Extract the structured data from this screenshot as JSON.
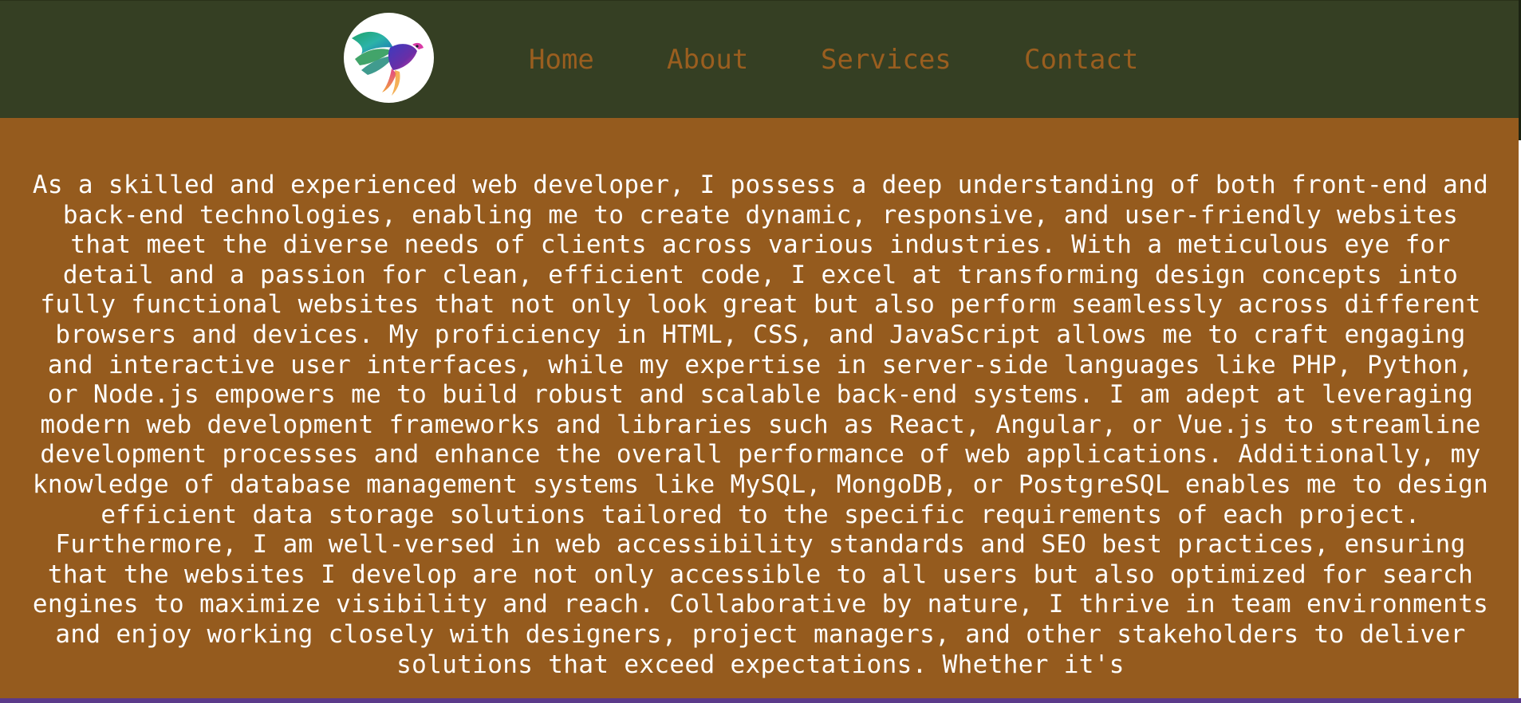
{
  "header": {
    "logo": {
      "icon": "bird-logo-icon",
      "colors": [
        "#1fa36b",
        "#2bb3a8",
        "#5a2ea6",
        "#d93aa6",
        "#f2a23a"
      ]
    },
    "nav": {
      "home_label": "Home",
      "about_label": "About",
      "services_label": "Services",
      "contact_label": "Contact"
    }
  },
  "main": {
    "about_paragraph": "As a skilled and experienced web developer, I possess a deep understanding of both front-end and back-end technologies, enabling me to create dynamic, responsive, and user-friendly websites that meet the diverse needs of clients across various industries. With a meticulous eye for detail and a passion for clean, efficient code, I excel at transforming design concepts into fully functional websites that not only look great but also perform seamlessly across different browsers and devices. My proficiency in HTML, CSS, and JavaScript allows me to craft engaging and interactive user interfaces, while my expertise in server-side languages like PHP, Python, or Node.js empowers me to build robust and scalable back-end systems. I am adept at leveraging modern web development frameworks and libraries such as React, Angular, or Vue.js to streamline development processes and enhance the overall performance of web applications. Additionally, my knowledge of database management systems like MySQL, MongoDB, or PostgreSQL enables me to design efficient data storage solutions tailored to the specific requirements of each project. Furthermore, I am well-versed in web accessibility standards and SEO best practices, ensuring that the websites I develop are not only accessible to all users but also optimized for search engines to maximize visibility and reach. Collaborative by nature, I thrive in team environments and enjoy working closely with designers, project managers, and other stakeholders to deliver solutions that exceed expectations. Whether it's"
  },
  "colors": {
    "navbar_bg": "#353f23",
    "nav_link": "#9a5e1f",
    "main_bg": "#955b1e",
    "text": "#ffffff"
  }
}
